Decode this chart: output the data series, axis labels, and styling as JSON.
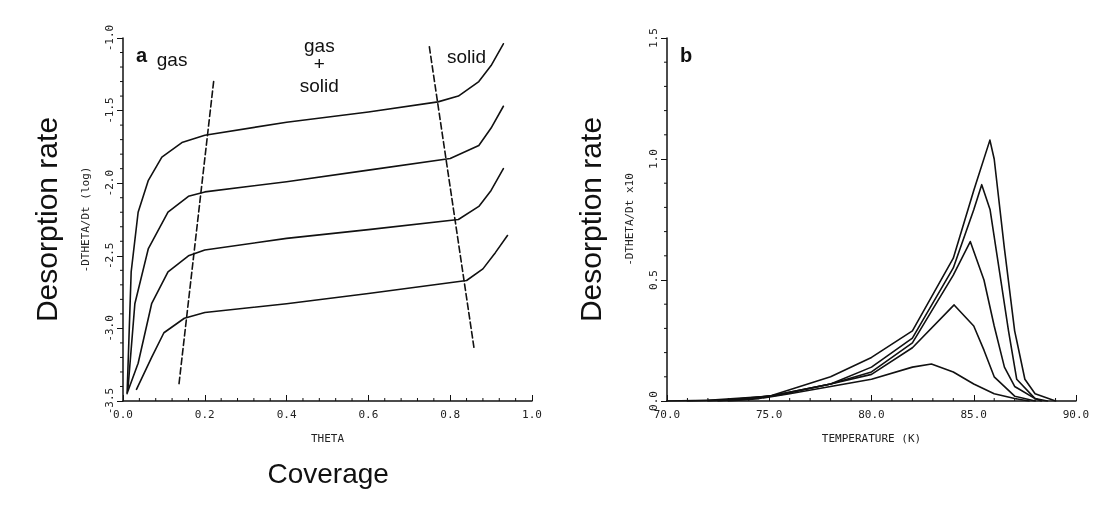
{
  "chart_data": [
    {
      "type": "line",
      "title": "a",
      "xlabel": "THETA",
      "ylabel": "-DTHETA/Dt (log)",
      "xlim": [
        0,
        1
      ],
      "xticks": [
        {
          "value": 0,
          "label": "0.0"
        },
        0.2,
        0.4,
        0.6,
        0.8,
        {
          "value": 1,
          "label": "1.0"
        }
      ],
      "ylim": [
        -3.5,
        -1
      ],
      "yticks": [
        -3.5,
        {
          "value": -3,
          "label": "-3.0"
        },
        -2.5,
        {
          "value": -2,
          "label": "-2.0"
        },
        -1.5,
        {
          "value": -1,
          "label": "-1.0"
        }
      ],
      "grid": false,
      "marker": "none",
      "line_style": "solid",
      "series": [
        {
          "color": "#111111",
          "x": [
            0.01,
            0.02,
            0.037,
            0.062,
            0.095,
            0.144,
            0.2,
            0.4,
            0.6,
            0.77,
            0.82,
            0.87,
            0.9,
            0.93
          ],
          "values": [
            -3.45,
            -2.61,
            -2.2,
            -1.98,
            -1.82,
            -1.72,
            -1.67,
            -1.58,
            -1.51,
            -1.44,
            -1.4,
            -1.3,
            -1.19,
            -1.04
          ]
        },
        {
          "color": "#111111",
          "x": [
            0.012,
            0.029,
            0.062,
            0.11,
            0.16,
            0.2,
            0.4,
            0.6,
            0.8,
            0.87,
            0.9,
            0.93
          ],
          "values": [
            -3.42,
            -2.83,
            -2.45,
            -2.2,
            -2.09,
            -2.06,
            -1.99,
            -1.91,
            -1.83,
            -1.74,
            -1.62,
            -1.47
          ]
        },
        {
          "color": "#111111",
          "x": [
            0.011,
            0.037,
            0.07,
            0.11,
            0.16,
            0.2,
            0.4,
            0.6,
            0.82,
            0.87,
            0.9,
            0.93
          ],
          "values": [
            -3.44,
            -3.24,
            -2.83,
            -2.61,
            -2.5,
            -2.46,
            -2.38,
            -2.32,
            -2.25,
            -2.16,
            -2.05,
            -1.9
          ]
        },
        {
          "color": "#111111",
          "x": [
            0.033,
            0.07,
            0.1,
            0.15,
            0.2,
            0.4,
            0.6,
            0.84,
            0.88,
            0.91,
            0.94
          ],
          "values": [
            -3.42,
            -3.2,
            -3.03,
            -2.93,
            -2.89,
            -2.83,
            -2.76,
            -2.67,
            -2.59,
            -2.48,
            -2.36
          ]
        },
        {
          "color": "#111111",
          "line_style": "dashed",
          "x": [
            0.137,
            0.222
          ],
          "values": [
            -3.38,
            -1.29
          ]
        },
        {
          "color": "#111111",
          "line_style": "dashed",
          "x": [
            0.749,
            0.858
          ],
          "values": [
            -1.06,
            -3.13
          ]
        }
      ],
      "annotations": [
        "Coverage",
        "Desorption rate",
        "gas",
        "gas",
        "+",
        "solid",
        "solid"
      ]
    },
    {
      "type": "line",
      "title": "b",
      "xlabel": "TEMPERATURE (K)",
      "ylabel": "-DTHETA/Dt x10",
      "xlim": [
        70,
        90
      ],
      "xticks": [
        {
          "value": 70,
          "label": "70.0"
        },
        {
          "value": 75,
          "label": "75.0"
        },
        {
          "value": 80,
          "label": "80.0"
        },
        {
          "value": 85,
          "label": "85.0"
        },
        {
          "value": 90,
          "label": "90.0"
        }
      ],
      "ylim": [
        0,
        1.5
      ],
      "yticks": [
        {
          "value": 0,
          "label": "0.0"
        },
        0.5,
        {
          "value": 1,
          "label": "1.0"
        },
        1.5
      ],
      "grid": false,
      "marker": "none",
      "line_style": "solid",
      "series": [
        {
          "color": "#111111",
          "x": [
            70,
            72,
            75,
            78,
            80,
            82,
            84,
            85,
            85.79,
            86,
            86.5,
            87,
            87.5,
            88,
            89
          ],
          "values": [
            0,
            0.003,
            0.02,
            0.1,
            0.18,
            0.29,
            0.59,
            0.87,
            1.078,
            1.0,
            0.63,
            0.29,
            0.09,
            0.03,
            0
          ]
        },
        {
          "color": "#111111",
          "x": [
            71,
            73,
            75,
            78,
            80,
            82,
            84,
            85,
            85.39,
            85.8,
            86.7,
            87.1,
            88,
            88.6
          ],
          "values": [
            0,
            0.005,
            0.02,
            0.07,
            0.14,
            0.26,
            0.55,
            0.79,
            0.894,
            0.79,
            0.29,
            0.09,
            0.01,
            0
          ]
        },
        {
          "color": "#111111",
          "x": [
            72,
            73.5,
            75,
            78,
            80,
            82,
            84,
            84.83,
            85.5,
            86,
            86.5,
            87,
            88,
            88.3
          ],
          "values": [
            0,
            0.006,
            0.02,
            0.07,
            0.12,
            0.24,
            0.52,
            0.659,
            0.5,
            0.31,
            0.14,
            0.06,
            0.01,
            0
          ]
        },
        {
          "color": "#111111",
          "x": [
            72.5,
            74,
            75.5,
            78,
            80,
            82,
            84.04,
            85,
            85.5,
            86,
            87,
            88
          ],
          "values": [
            0,
            0.008,
            0.025,
            0.07,
            0.11,
            0.22,
            0.397,
            0.31,
            0.21,
            0.1,
            0.02,
            0
          ]
        },
        {
          "color": "#111111",
          "x": [
            73,
            74.5,
            76,
            78,
            80,
            82,
            82.93,
            84,
            85,
            86,
            87,
            87.7
          ],
          "values": [
            0,
            0.01,
            0.03,
            0.06,
            0.09,
            0.14,
            0.153,
            0.12,
            0.07,
            0.03,
            0.01,
            0
          ]
        }
      ],
      "annotations": [
        "Desorption rate"
      ]
    }
  ]
}
